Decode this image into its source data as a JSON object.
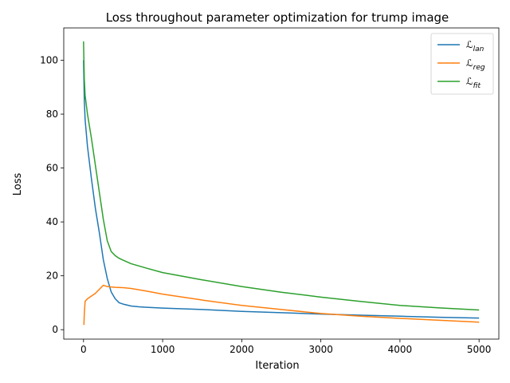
{
  "chart_data": {
    "type": "line",
    "title": "Loss throughout parameter optimization for trump image",
    "xlabel": "Iteration",
    "ylabel": "Loss",
    "xlim": [
      -250,
      5250
    ],
    "ylim": [
      -3.5,
      112
    ],
    "xticks": [
      0,
      1000,
      2000,
      3000,
      4000,
      5000
    ],
    "yticks": [
      0,
      20,
      40,
      60,
      80,
      100
    ],
    "grid": false,
    "legend_position": "top-right",
    "series": [
      {
        "name": "ℒlan",
        "label_main": "ℒ",
        "label_sub": "lan",
        "color": "#1f77b4",
        "x": [
          0,
          10,
          20,
          50,
          100,
          150,
          200,
          250,
          300,
          350,
          400,
          450,
          500,
          600,
          700,
          800,
          1000,
          1500,
          2000,
          2500,
          3000,
          3500,
          4000,
          4500,
          5000
        ],
        "y": [
          100,
          85,
          78,
          68,
          56,
          45,
          36,
          26,
          19,
          14,
          11.5,
          10,
          9.5,
          8.8,
          8.5,
          8.3,
          8.0,
          7.5,
          6.8,
          6.3,
          5.8,
          5.4,
          5.0,
          4.6,
          4.3
        ]
      },
      {
        "name": "ℒreg",
        "label_main": "ℒ",
        "label_sub": "reg",
        "color": "#ff7f0e",
        "x": [
          0,
          5,
          10,
          20,
          50,
          100,
          150,
          200,
          250,
          300,
          400,
          500,
          600,
          800,
          1000,
          1500,
          2000,
          2500,
          3000,
          3500,
          4000,
          4500,
          5000
        ],
        "y": [
          1.8,
          2.0,
          6,
          10.5,
          11.5,
          12.5,
          13.5,
          15,
          16.5,
          16.0,
          15.7,
          15.6,
          15.3,
          14.3,
          13.2,
          11.0,
          9.0,
          7.5,
          6.0,
          5.0,
          4.2,
          3.5,
          2.8
        ]
      },
      {
        "name": "ℒfit",
        "label_main": "ℒ",
        "label_sub": "fit",
        "color": "#2ca02c",
        "x": [
          0,
          10,
          20,
          50,
          100,
          150,
          200,
          250,
          300,
          350,
          400,
          450,
          500,
          600,
          800,
          1000,
          1500,
          2000,
          2500,
          3000,
          3500,
          4000,
          4500,
          5000
        ],
        "y": [
          107,
          93,
          87,
          80,
          71,
          61,
          51,
          41,
          33,
          29,
          27.5,
          26.5,
          25.8,
          24.5,
          22.8,
          21.2,
          18.5,
          16.0,
          13.9,
          12.1,
          10.5,
          9.0,
          8.1,
          7.3
        ]
      }
    ]
  }
}
